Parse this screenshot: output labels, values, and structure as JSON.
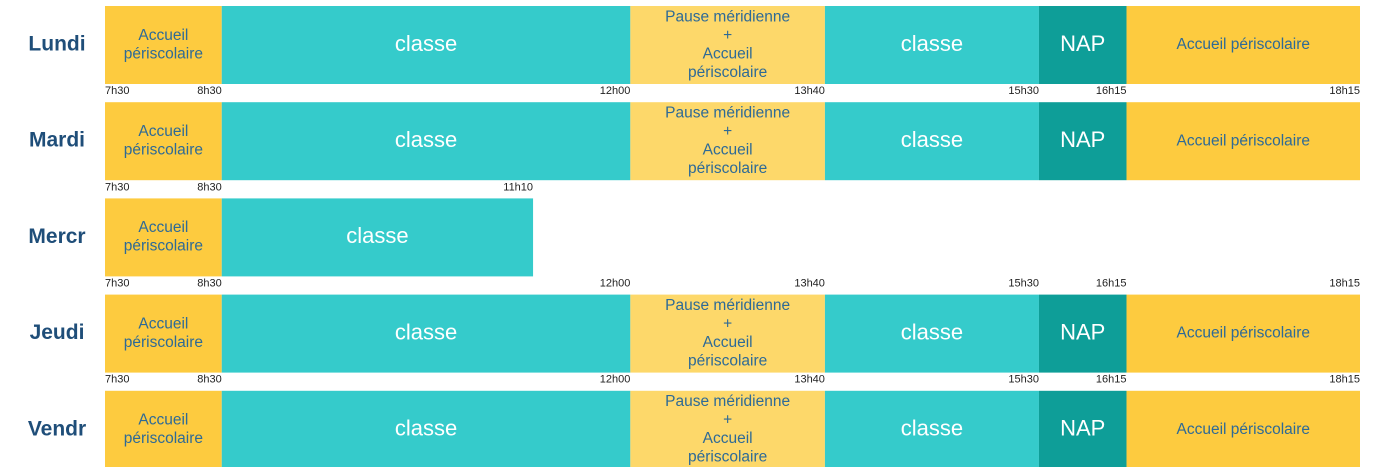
{
  "rows": [
    {
      "day": "Lundi",
      "segments": [
        {
          "lines": [
            "Accueil",
            "périscolaire"
          ],
          "color": "#fdcb3f",
          "text_color": "#2e6a96"
        },
        {
          "lines": [
            "classe"
          ],
          "color": "#35cbcb",
          "text_color": "#ffffff"
        },
        {
          "lines": [
            "Pause méridienne",
            "+",
            "Accueil",
            "périscolaire"
          ],
          "color": "#fdd86a",
          "text_color": "#2e6a96"
        },
        {
          "lines": [
            "classe"
          ],
          "color": "#35cbcb",
          "text_color": "#ffffff"
        },
        {
          "lines": [
            "NAP"
          ],
          "color": "#0e9e98",
          "text_color": "#ffffff"
        },
        {
          "lines": [
            "Accueil périscolaire"
          ],
          "color": "#fdcb3f",
          "text_color": "#2e6a96"
        }
      ]
    },
    {
      "day": "Mardi",
      "times": [
        "7h30",
        "8h30",
        "12h00",
        "13h40",
        "15h30",
        "16h15",
        "18h15"
      ],
      "segments": [
        {
          "lines": [
            "Accueil",
            "périscolaire"
          ],
          "color": "#fdcb3f",
          "text_color": "#2e6a96"
        },
        {
          "lines": [
            "classe"
          ],
          "color": "#35cbcb",
          "text_color": "#ffffff"
        },
        {
          "lines": [
            "Pause méridienne",
            "+",
            "Accueil",
            "périscolaire"
          ],
          "color": "#fdd86a",
          "text_color": "#2e6a96"
        },
        {
          "lines": [
            "classe"
          ],
          "color": "#35cbcb",
          "text_color": "#ffffff"
        },
        {
          "lines": [
            "NAP"
          ],
          "color": "#0e9e98",
          "text_color": "#ffffff"
        },
        {
          "lines": [
            "Accueil périscolaire"
          ],
          "color": "#fdcb3f",
          "text_color": "#2e6a96"
        }
      ]
    },
    {
      "day": "Mercr",
      "times": [
        "7h30",
        "8h30",
        "11h10"
      ],
      "segments": [
        {
          "lines": [
            "Accueil",
            "périscolaire"
          ],
          "color": "#fdcb3f",
          "text_color": "#2e6a96"
        },
        {
          "lines": [
            "classe"
          ],
          "color": "#35cbcb",
          "text_color": "#ffffff"
        }
      ]
    },
    {
      "day": "Jeudi",
      "times": [
        "7h30",
        "8h30",
        "12h00",
        "13h40",
        "15h30",
        "16h15",
        "18h15"
      ],
      "segments": [
        {
          "lines": [
            "Accueil",
            "périscolaire"
          ],
          "color": "#fdcb3f",
          "text_color": "#2e6a96"
        },
        {
          "lines": [
            "classe"
          ],
          "color": "#35cbcb",
          "text_color": "#ffffff"
        },
        {
          "lines": [
            "Pause méridienne",
            "+",
            "Accueil",
            "périscolaire"
          ],
          "color": "#fdd86a",
          "text_color": "#2e6a96"
        },
        {
          "lines": [
            "classe"
          ],
          "color": "#35cbcb",
          "text_color": "#ffffff"
        },
        {
          "lines": [
            "NAP"
          ],
          "color": "#0e9e98",
          "text_color": "#ffffff"
        },
        {
          "lines": [
            "Accueil périscolaire"
          ],
          "color": "#fdcb3f",
          "text_color": "#2e6a96"
        }
      ]
    },
    {
      "day": "Vendr",
      "times": [
        "7h30",
        "8h30",
        "12h00",
        "13h40",
        "15h30",
        "16h15",
        "18h15"
      ],
      "segments": [
        {
          "lines": [
            "Accueil",
            "périscolaire"
          ],
          "color": "#fdcb3f",
          "text_color": "#2e6a96"
        },
        {
          "lines": [
            "classe"
          ],
          "color": "#35cbcb",
          "text_color": "#ffffff"
        },
        {
          "lines": [
            "Pause méridienne",
            "+",
            "Accueil",
            "périscolaire"
          ],
          "color": "#fdd86a",
          "text_color": "#2e6a96"
        },
        {
          "lines": [
            "classe"
          ],
          "color": "#35cbcb",
          "text_color": "#ffffff"
        },
        {
          "lines": [
            "NAP"
          ],
          "color": "#0e9e98",
          "text_color": "#ffffff"
        },
        {
          "lines": [
            "Accueil périscolaire"
          ],
          "color": "#fdcb3f",
          "text_color": "#2e6a96"
        }
      ]
    }
  ]
}
